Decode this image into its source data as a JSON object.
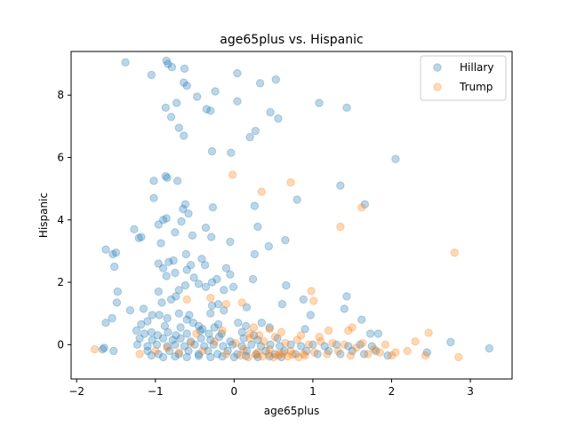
{
  "chart_data": {
    "type": "scatter",
    "title": "age65plus vs. Hispanic",
    "xlabel": "age65plus",
    "ylabel": "Hispanic",
    "xlim": [
      -2.07,
      3.53
    ],
    "ylim": [
      -1.1,
      9.4
    ],
    "xticks": [
      -2,
      -1,
      0,
      1,
      2,
      3
    ],
    "yticks": [
      0,
      2,
      4,
      6,
      8
    ],
    "grid": false,
    "legend_position": "top-right",
    "series": [
      {
        "name": "Hillary",
        "color": "#1f77b4",
        "points": [
          [
            -1.38,
            9.05
          ],
          [
            -0.86,
            9.1
          ],
          [
            -0.84,
            9.0
          ],
          [
            -0.79,
            8.9
          ],
          [
            -0.63,
            8.85
          ],
          [
            -1.05,
            8.65
          ],
          [
            0.04,
            8.7
          ],
          [
            -0.6,
            8.3
          ],
          [
            -0.64,
            8.4
          ],
          [
            0.53,
            8.5
          ],
          [
            0.33,
            8.38
          ],
          [
            -0.24,
            8.12
          ],
          [
            -0.47,
            7.95
          ],
          [
            -0.73,
            7.75
          ],
          [
            0.04,
            7.8
          ],
          [
            -0.87,
            7.6
          ],
          [
            1.08,
            7.75
          ],
          [
            -0.35,
            7.55
          ],
          [
            -0.3,
            7.5
          ],
          [
            0.46,
            7.45
          ],
          [
            1.43,
            7.6
          ],
          [
            0.56,
            7.25
          ],
          [
            -0.8,
            7.3
          ],
          [
            -0.7,
            6.95
          ],
          [
            -0.64,
            6.7
          ],
          [
            0.27,
            6.85
          ],
          [
            0.2,
            6.65
          ],
          [
            -0.28,
            6.2
          ],
          [
            -0.04,
            6.15
          ],
          [
            2.05,
            5.95
          ],
          [
            -0.87,
            5.4
          ],
          [
            -1.02,
            5.25
          ],
          [
            -0.72,
            5.25
          ],
          [
            -0.85,
            5.35
          ],
          [
            1.35,
            5.1
          ],
          [
            -1.02,
            4.7
          ],
          [
            -0.62,
            4.5
          ],
          [
            0.8,
            4.65
          ],
          [
            1.66,
            4.5
          ],
          [
            -0.27,
            4.4
          ],
          [
            -0.65,
            4.35
          ],
          [
            -0.58,
            4.2
          ],
          [
            0.26,
            4.45
          ],
          [
            -0.86,
            4.05
          ],
          [
            -0.9,
            4.0
          ],
          [
            -0.67,
            3.95
          ],
          [
            0.3,
            3.78
          ],
          [
            -0.36,
            3.75
          ],
          [
            -1.27,
            3.7
          ],
          [
            -0.96,
            3.85
          ],
          [
            -0.75,
            3.6
          ],
          [
            -0.53,
            3.5
          ],
          [
            -1.18,
            3.45
          ],
          [
            -1.21,
            3.42
          ],
          [
            0.65,
            3.35
          ],
          [
            -0.29,
            3.45
          ],
          [
            -0.05,
            3.3
          ],
          [
            -0.93,
            3.25
          ],
          [
            -1.63,
            3.05
          ],
          [
            -1.5,
            2.95
          ],
          [
            -1.54,
            2.9
          ],
          [
            0.44,
            3.15
          ],
          [
            0.26,
            2.9
          ],
          [
            -0.61,
            2.9
          ],
          [
            -0.77,
            2.7
          ],
          [
            -0.83,
            2.65
          ],
          [
            -0.96,
            2.6
          ],
          [
            -0.41,
            2.75
          ],
          [
            -0.55,
            2.55
          ],
          [
            -1.52,
            2.5
          ],
          [
            -0.75,
            2.3
          ],
          [
            -0.1,
            2.45
          ],
          [
            -0.9,
            2.45
          ],
          [
            -0.37,
            2.55
          ],
          [
            -0.6,
            2.4
          ],
          [
            -0.86,
            2.2
          ],
          [
            -0.51,
            2.15
          ],
          [
            -0.22,
            2.1
          ],
          [
            -0.28,
            2.0
          ],
          [
            0.24,
            2.1
          ],
          [
            -0.05,
            2.25
          ],
          [
            -0.62,
            1.9
          ],
          [
            -0.7,
            1.75
          ],
          [
            -1.48,
            1.7
          ],
          [
            -0.96,
            1.7
          ],
          [
            -0.45,
            1.95
          ],
          [
            -0.36,
            1.85
          ],
          [
            -0.01,
            1.85
          ],
          [
            -0.13,
            1.75
          ],
          [
            0.66,
            1.9
          ],
          [
            -0.74,
            1.55
          ],
          [
            -0.8,
            1.45
          ],
          [
            -0.92,
            1.35
          ],
          [
            -1.49,
            1.35
          ],
          [
            0.88,
            1.45
          ],
          [
            1.43,
            1.55
          ],
          [
            -0.2,
            1.3
          ],
          [
            -0.28,
            1.25
          ],
          [
            0.16,
            1.2
          ],
          [
            0.61,
            1.3
          ],
          [
            -1.32,
            1.1
          ],
          [
            -1.15,
            1.15
          ],
          [
            -1.04,
            0.95
          ],
          [
            -0.95,
            0.95
          ],
          [
            -0.7,
            1.0
          ],
          [
            -0.3,
            1.0
          ],
          [
            -0.13,
            1.1
          ],
          [
            -0.57,
            0.95
          ],
          [
            0.97,
            0.95
          ],
          [
            1.4,
            1.15
          ],
          [
            -1.55,
            0.85
          ],
          [
            -1.63,
            0.7
          ],
          [
            -1.18,
            0.65
          ],
          [
            -1.1,
            0.75
          ],
          [
            -0.88,
            0.6
          ],
          [
            -0.68,
            0.55
          ],
          [
            -0.52,
            0.7
          ],
          [
            -0.45,
            0.6
          ],
          [
            -0.2,
            0.65
          ],
          [
            0.05,
            0.7
          ],
          [
            0.35,
            0.7
          ],
          [
            1.62,
            0.8
          ],
          [
            -1.24,
            0.45
          ],
          [
            -1.14,
            0.35
          ],
          [
            -1.05,
            0.4
          ],
          [
            -0.97,
            0.3
          ],
          [
            -0.84,
            0.4
          ],
          [
            -0.74,
            0.3
          ],
          [
            -0.6,
            0.35
          ],
          [
            -0.43,
            0.45
          ],
          [
            -0.32,
            0.35
          ],
          [
            -0.16,
            0.35
          ],
          [
            0.1,
            0.4
          ],
          [
            0.25,
            0.3
          ],
          [
            0.9,
            0.5
          ],
          [
            1.73,
            0.35
          ],
          [
            1.83,
            0.35
          ],
          [
            -1.2,
            0.2
          ],
          [
            -1.04,
            0.15
          ],
          [
            -0.9,
            0.2
          ],
          [
            -0.78,
            0.15
          ],
          [
            -0.68,
            0.2
          ],
          [
            -0.55,
            0.1
          ],
          [
            -0.42,
            0.2
          ],
          [
            -0.3,
            0.15
          ],
          [
            -0.19,
            0.25
          ],
          [
            -0.05,
            0.1
          ],
          [
            0.12,
            0.2
          ],
          [
            0.3,
            0.15
          ],
          [
            0.55,
            0.2
          ],
          [
            -1.23,
            0.0
          ],
          [
            -1.1,
            -0.05
          ],
          [
            -0.98,
            0.0
          ],
          [
            -0.85,
            -0.05
          ],
          [
            -0.75,
            0.0
          ],
          [
            -0.63,
            -0.05
          ],
          [
            -0.5,
            0.0
          ],
          [
            -0.38,
            -0.05
          ],
          [
            -0.26,
            0.0
          ],
          [
            -0.14,
            -0.05
          ],
          [
            -0.02,
            0.0
          ],
          [
            0.1,
            -0.05
          ],
          [
            0.22,
            0.0
          ],
          [
            0.34,
            -0.05
          ],
          [
            0.46,
            0.0
          ],
          [
            0.58,
            -0.05
          ],
          [
            0.72,
            0.0
          ],
          [
            0.85,
            -0.05
          ],
          [
            1.0,
            0.0
          ],
          [
            1.15,
            -0.05
          ],
          [
            1.3,
            0.0
          ],
          [
            1.45,
            -0.05
          ],
          [
            1.6,
            0.0
          ],
          [
            1.75,
            -0.05
          ],
          [
            -1.67,
            -0.15
          ],
          [
            -1.65,
            -0.1
          ],
          [
            -1.53,
            -0.2
          ],
          [
            -1.1,
            -0.2
          ],
          [
            -0.96,
            -0.3
          ],
          [
            -0.82,
            -0.2
          ],
          [
            -0.7,
            -0.3
          ],
          [
            -0.58,
            -0.2
          ],
          [
            -0.45,
            -0.3
          ],
          [
            -0.33,
            -0.2
          ],
          [
            -0.21,
            -0.3
          ],
          [
            -0.08,
            -0.2
          ],
          [
            0.04,
            -0.3
          ],
          [
            0.16,
            -0.2
          ],
          [
            0.28,
            -0.3
          ],
          [
            0.4,
            -0.2
          ],
          [
            0.52,
            -0.3
          ],
          [
            0.64,
            -0.2
          ],
          [
            0.78,
            -0.3
          ],
          [
            0.92,
            -0.2
          ],
          [
            1.06,
            -0.3
          ],
          [
            1.2,
            -0.2
          ],
          [
            1.35,
            -0.3
          ],
          [
            1.5,
            -0.2
          ],
          [
            1.65,
            -0.3
          ],
          [
            1.8,
            -0.2
          ],
          [
            1.95,
            -0.35
          ],
          [
            2.45,
            -0.25
          ],
          [
            2.75,
            0.08
          ],
          [
            3.24,
            -0.12
          ],
          [
            -1.05,
            -0.35
          ],
          [
            -0.9,
            -0.4
          ],
          [
            -0.75,
            -0.38
          ],
          [
            -0.6,
            -0.4
          ],
          [
            -0.45,
            -0.36
          ],
          [
            -0.3,
            -0.4
          ],
          [
            -0.15,
            -0.38
          ],
          [
            0.0,
            -0.4
          ],
          [
            0.15,
            -0.36
          ],
          [
            0.3,
            -0.4
          ],
          [
            0.45,
            -0.38
          ],
          [
            0.6,
            -0.4
          ],
          [
            -0.4,
            0.5
          ],
          [
            -0.25,
            0.55
          ],
          [
            0.15,
            0.6
          ],
          [
            -0.6,
            0.8
          ],
          [
            -0.85,
            0.85
          ],
          [
            0.45,
            0.55
          ]
        ]
      },
      {
        "name": "Trump",
        "color": "#ff7f0e",
        "points": [
          [
            -0.02,
            5.45
          ],
          [
            0.72,
            5.2
          ],
          [
            0.35,
            4.9
          ],
          [
            1.62,
            4.4
          ],
          [
            1.35,
            3.78
          ],
          [
            2.8,
            2.95
          ],
          [
            0.98,
            1.72
          ],
          [
            1.01,
            1.4
          ],
          [
            -0.3,
            1.5
          ],
          [
            -0.1,
            1.3
          ],
          [
            0.1,
            1.35
          ],
          [
            -0.6,
            1.45
          ],
          [
            1.5,
            0.55
          ],
          [
            1.45,
            0.45
          ],
          [
            1.2,
            0.45
          ],
          [
            0.45,
            0.5
          ],
          [
            0.25,
            0.55
          ],
          [
            -0.15,
            0.45
          ],
          [
            2.47,
            0.38
          ],
          [
            2.3,
            0.1
          ],
          [
            2.2,
            -0.2
          ],
          [
            2.05,
            -0.25
          ],
          [
            2.43,
            -0.35
          ],
          [
            2.85,
            -0.4
          ],
          [
            -1.77,
            -0.15
          ],
          [
            -1.2,
            -0.3
          ],
          [
            -1.0,
            -0.2
          ],
          [
            -0.85,
            -0.1
          ],
          [
            -0.7,
            -0.25
          ],
          [
            -0.55,
            0.05
          ],
          [
            -0.4,
            -0.2
          ],
          [
            -0.25,
            0.1
          ],
          [
            -0.1,
            -0.3
          ],
          [
            0.02,
            0.05
          ],
          [
            0.12,
            -0.15
          ],
          [
            0.2,
            0.2
          ],
          [
            0.3,
            -0.25
          ],
          [
            0.38,
            0.1
          ],
          [
            0.45,
            -0.15
          ],
          [
            0.52,
            0.25
          ],
          [
            0.58,
            -0.3
          ],
          [
            0.65,
            0.05
          ],
          [
            0.72,
            -0.2
          ],
          [
            0.8,
            0.15
          ],
          [
            0.88,
            -0.3
          ],
          [
            0.95,
            0.0
          ],
          [
            1.02,
            -0.25
          ],
          [
            1.1,
            0.1
          ],
          [
            1.18,
            -0.3
          ],
          [
            1.25,
            0.05
          ],
          [
            1.32,
            -0.2
          ],
          [
            1.4,
            0.0
          ],
          [
            1.48,
            -0.35
          ],
          [
            1.55,
            -0.1
          ],
          [
            1.63,
            0.05
          ],
          [
            1.7,
            -0.3
          ],
          [
            1.78,
            -0.15
          ],
          [
            1.85,
            -0.25
          ],
          [
            1.92,
            0.0
          ],
          [
            2.0,
            -0.35
          ],
          [
            0.08,
            -0.35
          ],
          [
            0.18,
            -0.4
          ],
          [
            0.28,
            -0.33
          ],
          [
            0.36,
            -0.38
          ],
          [
            0.44,
            -0.3
          ],
          [
            0.5,
            -0.4
          ],
          [
            0.56,
            -0.35
          ],
          [
            0.62,
            -0.28
          ],
          [
            0.68,
            -0.38
          ],
          [
            0.74,
            -0.32
          ],
          [
            0.82,
            -0.4
          ],
          [
            0.9,
            -0.35
          ],
          [
            0.2,
            0.35
          ],
          [
            0.32,
            0.3
          ],
          [
            0.6,
            0.4
          ],
          [
            0.85,
            0.3
          ],
          [
            1.08,
            0.25
          ],
          [
            -0.48,
            0.35
          ]
        ]
      }
    ]
  }
}
